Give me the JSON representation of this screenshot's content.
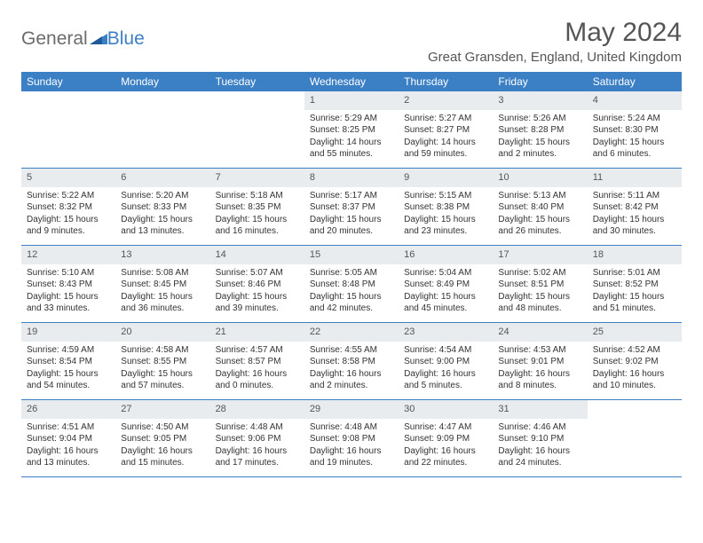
{
  "logo": {
    "part1": "General",
    "part2": "Blue"
  },
  "title": "May 2024",
  "location": "Great Gransden, England, United Kingdom",
  "colors": {
    "header_bg": "#3b7fc4",
    "header_text": "#ffffff",
    "daynum_bg": "#e8ecef",
    "border": "#3b7fc4",
    "text": "#333333",
    "title_text": "#555555"
  },
  "weekdays": [
    "Sunday",
    "Monday",
    "Tuesday",
    "Wednesday",
    "Thursday",
    "Friday",
    "Saturday"
  ],
  "weeks": [
    [
      null,
      null,
      null,
      {
        "n": "1",
        "sr": "Sunrise: 5:29 AM",
        "ss": "Sunset: 8:25 PM",
        "dl": "Daylight: 14 hours and 55 minutes."
      },
      {
        "n": "2",
        "sr": "Sunrise: 5:27 AM",
        "ss": "Sunset: 8:27 PM",
        "dl": "Daylight: 14 hours and 59 minutes."
      },
      {
        "n": "3",
        "sr": "Sunrise: 5:26 AM",
        "ss": "Sunset: 8:28 PM",
        "dl": "Daylight: 15 hours and 2 minutes."
      },
      {
        "n": "4",
        "sr": "Sunrise: 5:24 AM",
        "ss": "Sunset: 8:30 PM",
        "dl": "Daylight: 15 hours and 6 minutes."
      }
    ],
    [
      {
        "n": "5",
        "sr": "Sunrise: 5:22 AM",
        "ss": "Sunset: 8:32 PM",
        "dl": "Daylight: 15 hours and 9 minutes."
      },
      {
        "n": "6",
        "sr": "Sunrise: 5:20 AM",
        "ss": "Sunset: 8:33 PM",
        "dl": "Daylight: 15 hours and 13 minutes."
      },
      {
        "n": "7",
        "sr": "Sunrise: 5:18 AM",
        "ss": "Sunset: 8:35 PM",
        "dl": "Daylight: 15 hours and 16 minutes."
      },
      {
        "n": "8",
        "sr": "Sunrise: 5:17 AM",
        "ss": "Sunset: 8:37 PM",
        "dl": "Daylight: 15 hours and 20 minutes."
      },
      {
        "n": "9",
        "sr": "Sunrise: 5:15 AM",
        "ss": "Sunset: 8:38 PM",
        "dl": "Daylight: 15 hours and 23 minutes."
      },
      {
        "n": "10",
        "sr": "Sunrise: 5:13 AM",
        "ss": "Sunset: 8:40 PM",
        "dl": "Daylight: 15 hours and 26 minutes."
      },
      {
        "n": "11",
        "sr": "Sunrise: 5:11 AM",
        "ss": "Sunset: 8:42 PM",
        "dl": "Daylight: 15 hours and 30 minutes."
      }
    ],
    [
      {
        "n": "12",
        "sr": "Sunrise: 5:10 AM",
        "ss": "Sunset: 8:43 PM",
        "dl": "Daylight: 15 hours and 33 minutes."
      },
      {
        "n": "13",
        "sr": "Sunrise: 5:08 AM",
        "ss": "Sunset: 8:45 PM",
        "dl": "Daylight: 15 hours and 36 minutes."
      },
      {
        "n": "14",
        "sr": "Sunrise: 5:07 AM",
        "ss": "Sunset: 8:46 PM",
        "dl": "Daylight: 15 hours and 39 minutes."
      },
      {
        "n": "15",
        "sr": "Sunrise: 5:05 AM",
        "ss": "Sunset: 8:48 PM",
        "dl": "Daylight: 15 hours and 42 minutes."
      },
      {
        "n": "16",
        "sr": "Sunrise: 5:04 AM",
        "ss": "Sunset: 8:49 PM",
        "dl": "Daylight: 15 hours and 45 minutes."
      },
      {
        "n": "17",
        "sr": "Sunrise: 5:02 AM",
        "ss": "Sunset: 8:51 PM",
        "dl": "Daylight: 15 hours and 48 minutes."
      },
      {
        "n": "18",
        "sr": "Sunrise: 5:01 AM",
        "ss": "Sunset: 8:52 PM",
        "dl": "Daylight: 15 hours and 51 minutes."
      }
    ],
    [
      {
        "n": "19",
        "sr": "Sunrise: 4:59 AM",
        "ss": "Sunset: 8:54 PM",
        "dl": "Daylight: 15 hours and 54 minutes."
      },
      {
        "n": "20",
        "sr": "Sunrise: 4:58 AM",
        "ss": "Sunset: 8:55 PM",
        "dl": "Daylight: 15 hours and 57 minutes."
      },
      {
        "n": "21",
        "sr": "Sunrise: 4:57 AM",
        "ss": "Sunset: 8:57 PM",
        "dl": "Daylight: 16 hours and 0 minutes."
      },
      {
        "n": "22",
        "sr": "Sunrise: 4:55 AM",
        "ss": "Sunset: 8:58 PM",
        "dl": "Daylight: 16 hours and 2 minutes."
      },
      {
        "n": "23",
        "sr": "Sunrise: 4:54 AM",
        "ss": "Sunset: 9:00 PM",
        "dl": "Daylight: 16 hours and 5 minutes."
      },
      {
        "n": "24",
        "sr": "Sunrise: 4:53 AM",
        "ss": "Sunset: 9:01 PM",
        "dl": "Daylight: 16 hours and 8 minutes."
      },
      {
        "n": "25",
        "sr": "Sunrise: 4:52 AM",
        "ss": "Sunset: 9:02 PM",
        "dl": "Daylight: 16 hours and 10 minutes."
      }
    ],
    [
      {
        "n": "26",
        "sr": "Sunrise: 4:51 AM",
        "ss": "Sunset: 9:04 PM",
        "dl": "Daylight: 16 hours and 13 minutes."
      },
      {
        "n": "27",
        "sr": "Sunrise: 4:50 AM",
        "ss": "Sunset: 9:05 PM",
        "dl": "Daylight: 16 hours and 15 minutes."
      },
      {
        "n": "28",
        "sr": "Sunrise: 4:48 AM",
        "ss": "Sunset: 9:06 PM",
        "dl": "Daylight: 16 hours and 17 minutes."
      },
      {
        "n": "29",
        "sr": "Sunrise: 4:48 AM",
        "ss": "Sunset: 9:08 PM",
        "dl": "Daylight: 16 hours and 19 minutes."
      },
      {
        "n": "30",
        "sr": "Sunrise: 4:47 AM",
        "ss": "Sunset: 9:09 PM",
        "dl": "Daylight: 16 hours and 22 minutes."
      },
      {
        "n": "31",
        "sr": "Sunrise: 4:46 AM",
        "ss": "Sunset: 9:10 PM",
        "dl": "Daylight: 16 hours and 24 minutes."
      },
      null
    ]
  ]
}
